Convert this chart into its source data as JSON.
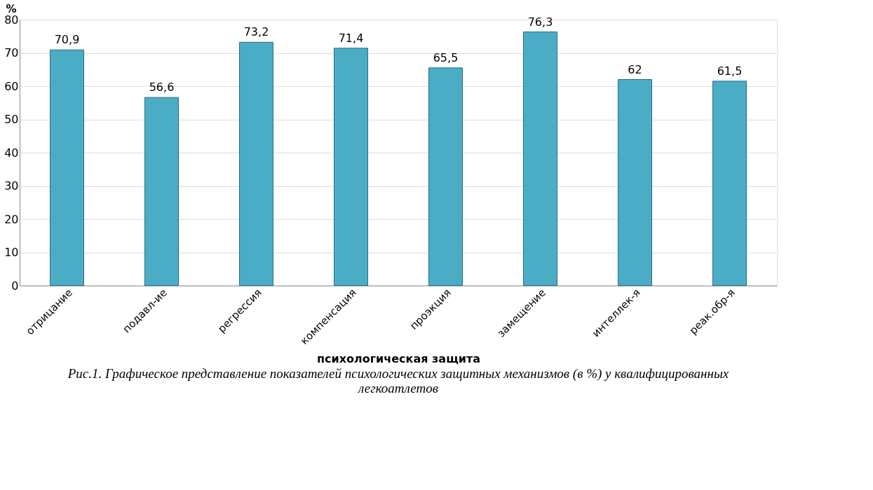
{
  "chart_data": {
    "type": "bar",
    "categories": [
      "отрицание",
      "подавл-ие",
      "регрессия",
      "компенсация",
      "проэкция",
      "замещение",
      "интеллек-я",
      "реак.обр-я"
    ],
    "values": [
      70.9,
      56.6,
      73.2,
      71.4,
      65.5,
      76.3,
      62,
      61.5
    ],
    "value_labels": [
      "70,9",
      "56,6",
      "73,2",
      "71,4",
      "65,5",
      "76,3",
      "62",
      "61,5"
    ],
    "color": "#4bacc6",
    "ylabel": "%",
    "xlabel": "психологическая защита",
    "ylim": [
      0,
      80
    ],
    "yticks": [
      0,
      10,
      20,
      30,
      40,
      50,
      60,
      70,
      80
    ],
    "grid": "y",
    "annotations": [
      "Рис.1. Графическое представление показателей психологических защитных механизмов (в %) у квалифицированных легкоатлетов"
    ]
  }
}
